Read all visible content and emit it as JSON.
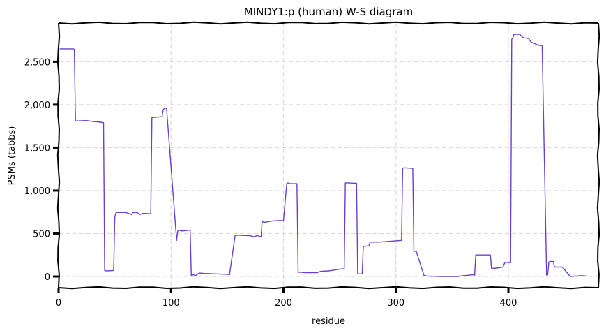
{
  "chart_data": {
    "type": "line",
    "title": "MINDY1:p (human) W-S diagram",
    "xlabel": "residue",
    "ylabel": "PSMs (tabbs)",
    "xlim": [
      0,
      480
    ],
    "ylim": [
      -130,
      2950
    ],
    "xticks": [
      0,
      100,
      200,
      300,
      400
    ],
    "yticks": [
      0,
      500,
      1000,
      1500,
      2000,
      2500
    ],
    "xtick_labels": [
      "0",
      "100",
      "200",
      "300",
      "400"
    ],
    "ytick_labels": [
      "0",
      "500",
      "1,000",
      "1,500",
      "2,000",
      "2,500"
    ],
    "grid": true,
    "line_color": "#6a3fd0",
    "series": [
      {
        "x": [
          1,
          13,
          14,
          15,
          25,
          30,
          35,
          40,
          41,
          43,
          49,
          50,
          51,
          52,
          60,
          65,
          66,
          70,
          72,
          75,
          82,
          83,
          92,
          93,
          94,
          95,
          96,
          105,
          106,
          107,
          108,
          110,
          117,
          118,
          120,
          122,
          125,
          130,
          140,
          150,
          152,
          157,
          158,
          160,
          170,
          175,
          176,
          180,
          181,
          183,
          190,
          195,
          200,
          203,
          204,
          206,
          212,
          213,
          215,
          220,
          230,
          233,
          240,
          245,
          250,
          254,
          255,
          257,
          265,
          266,
          270,
          271,
          275,
          276,
          277,
          285,
          290,
          300,
          305,
          306,
          307,
          315,
          316,
          318,
          325,
          326,
          328,
          340,
          355,
          360,
          365,
          368,
          370,
          371,
          372,
          384,
          385,
          388,
          395,
          397,
          398,
          402,
          403,
          404,
          405,
          407,
          410,
          413,
          418,
          420,
          427,
          430,
          434,
          435,
          436,
          437,
          440,
          441,
          447,
          448,
          455,
          460,
          465,
          470
        ],
        "y": [
          2650,
          2650,
          2645,
          1810,
          1815,
          1805,
          1800,
          1790,
          70,
          65,
          70,
          690,
          740,
          745,
          745,
          720,
          745,
          745,
          720,
          735,
          730,
          1850,
          1860,
          1940,
          1955,
          1960,
          1960,
          420,
          530,
          540,
          535,
          530,
          540,
          10,
          20,
          10,
          40,
          35,
          30,
          25,
          20,
          480,
          480,
          480,
          475,
          460,
          480,
          460,
          640,
          630,
          645,
          650,
          650,
          1085,
          1090,
          1080,
          1080,
          50,
          50,
          45,
          45,
          60,
          65,
          75,
          85,
          90,
          1090,
          1090,
          1085,
          30,
          30,
          350,
          355,
          355,
          400,
          400,
          405,
          415,
          420,
          1260,
          1265,
          1260,
          290,
          295,
          10,
          10,
          5,
          0,
          0,
          10,
          15,
          20,
          15,
          250,
          250,
          250,
          95,
          95,
          110,
          165,
          165,
          160,
          2760,
          2780,
          2820,
          2820,
          2820,
          2780,
          2770,
          2730,
          2690,
          2690,
          10,
          20,
          170,
          175,
          175,
          110,
          110,
          110,
          0,
          5,
          10,
          5
        ]
      }
    ]
  }
}
